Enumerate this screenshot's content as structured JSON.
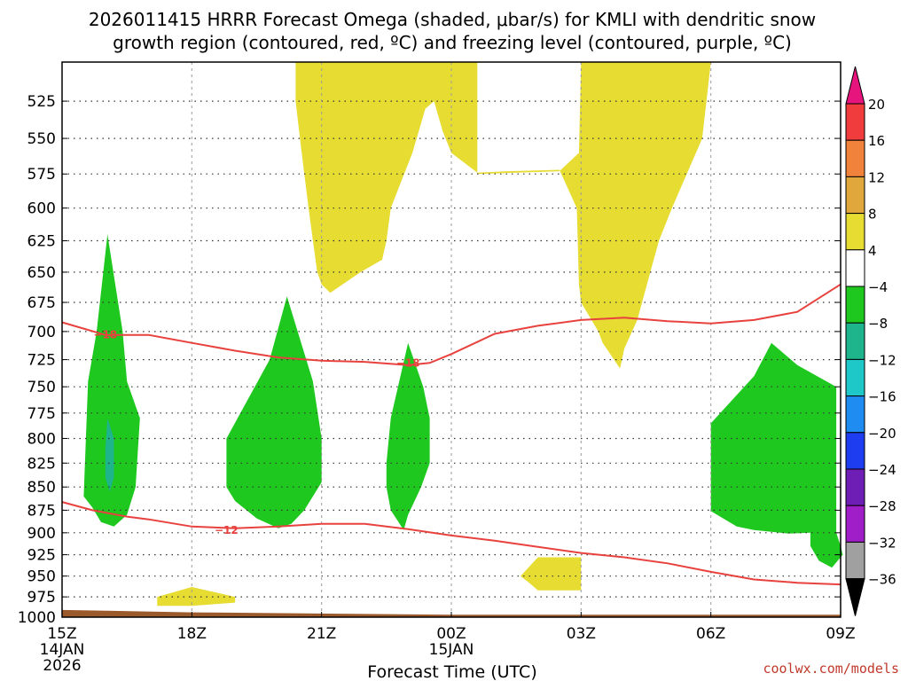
{
  "chart_data": {
    "type": "heatmap",
    "title_line1": "2026011415 HRRR Forecast Omega (shaded, μbar/s) for KMLI with dendritic snow",
    "title_line2": "growth region (contoured, red, ºC) and freezing level (contoured, purple, ºC)",
    "xlabel": "Forecast Time (UTC)",
    "credit": "coolwx.com/models",
    "x_range_hours": [
      0,
      18
    ],
    "pressure_range_mb": [
      500,
      1000
    ],
    "x_ticks": [
      {
        "h": 0,
        "label": "15Z",
        "sub1": "14JAN",
        "sub2": "2026"
      },
      {
        "h": 3,
        "label": "18Z",
        "sub1": "",
        "sub2": ""
      },
      {
        "h": 6,
        "label": "21Z",
        "sub1": "",
        "sub2": ""
      },
      {
        "h": 9,
        "label": "00Z",
        "sub1": "15JAN",
        "sub2": ""
      },
      {
        "h": 12,
        "label": "03Z",
        "sub1": "",
        "sub2": ""
      },
      {
        "h": 15,
        "label": "06Z",
        "sub1": "",
        "sub2": ""
      },
      {
        "h": 18,
        "label": "09Z",
        "sub1": "",
        "sub2": ""
      }
    ],
    "y_ticks": [
      {
        "p": 525,
        "label": "525"
      },
      {
        "p": 550,
        "label": "550"
      },
      {
        "p": 575,
        "label": "575"
      },
      {
        "p": 600,
        "label": "600"
      },
      {
        "p": 625,
        "label": "625"
      },
      {
        "p": 650,
        "label": "650"
      },
      {
        "p": 675,
        "label": "675"
      },
      {
        "p": 700,
        "label": "700"
      },
      {
        "p": 725,
        "label": "725"
      },
      {
        "p": 750,
        "label": "750"
      },
      {
        "p": 775,
        "label": "775"
      },
      {
        "p": 800,
        "label": "800"
      },
      {
        "p": 825,
        "label": "825"
      },
      {
        "p": 850,
        "label": "850"
      },
      {
        "p": 875,
        "label": "875"
      },
      {
        "p": 900,
        "label": "900"
      },
      {
        "p": 925,
        "label": "925"
      },
      {
        "p": 950,
        "label": "950"
      },
      {
        "p": 975,
        "label": "975"
      },
      {
        "p": 1000,
        "label": "1000"
      }
    ],
    "colorbar": {
      "labels": [
        "20",
        "16",
        "12",
        "8",
        "4",
        "−4",
        "−8",
        "−12",
        "−16",
        "−20",
        "−24",
        "−28",
        "−32",
        "−36"
      ],
      "colors": [
        "#f03c3c",
        "#f0823c",
        "#e0a83c",
        "#e6dc32",
        "#ffffff",
        "#1ec81e",
        "#1eb48c",
        "#1ec8c8",
        "#1e8cf0",
        "#1e3cf0",
        "#6e1eb4",
        "#a01ec8",
        "#a0a0a0"
      ],
      "top_color": "#e6147d",
      "bottom_color": "#000000"
    },
    "colors": {
      "positive_omega": "#e6dc32",
      "negative_omega": "#1ec81e",
      "strong_negative": "#1eb48c",
      "contour": "#e8423f",
      "terrain": "#9b5a2c",
      "grid": "#888888"
    },
    "contours": [
      {
        "name": "minus-18-contour",
        "label": "−18",
        "label_h": 1.0,
        "label_p": 703,
        "label2_h": 8.0,
        "label2_p": 728,
        "points": [
          [
            0,
            692
          ],
          [
            1.0,
            703
          ],
          [
            2.0,
            703
          ],
          [
            3.0,
            710
          ],
          [
            4.0,
            717
          ],
          [
            5.0,
            723
          ],
          [
            6.0,
            726
          ],
          [
            7.0,
            727
          ],
          [
            8.0,
            730
          ],
          [
            8.5,
            728
          ],
          [
            9.0,
            720
          ],
          [
            10.0,
            702
          ],
          [
            11.0,
            695
          ],
          [
            12.0,
            690
          ],
          [
            13.0,
            688
          ],
          [
            14.0,
            691
          ],
          [
            15.0,
            693
          ],
          [
            16.0,
            690
          ],
          [
            17.0,
            683
          ],
          [
            18.0,
            660
          ]
        ]
      },
      {
        "name": "minus-12-contour",
        "label": "−12",
        "label_h": 3.8,
        "label_p": 897,
        "points": [
          [
            0,
            866
          ],
          [
            0.7,
            875
          ],
          [
            1.5,
            882
          ],
          [
            2.0,
            885
          ],
          [
            3.0,
            893
          ],
          [
            4.0,
            895
          ],
          [
            5.0,
            893
          ],
          [
            6.0,
            890
          ],
          [
            7.0,
            890
          ],
          [
            8.0,
            896
          ],
          [
            9.0,
            903
          ],
          [
            10.0,
            909
          ],
          [
            11.0,
            916
          ],
          [
            12.0,
            923
          ],
          [
            13.0,
            928
          ],
          [
            14.0,
            935
          ],
          [
            15.0,
            945
          ],
          [
            16.0,
            954
          ],
          [
            17.0,
            958
          ],
          [
            18.0,
            960
          ]
        ]
      }
    ],
    "regions": [
      {
        "name": "upward-motion-region-1",
        "color": "positive_omega",
        "points": [
          [
            5.4,
            500
          ],
          [
            9.6,
            500
          ],
          [
            9.6,
            575
          ],
          [
            11.5,
            573
          ],
          [
            11.95,
            560
          ],
          [
            12.0,
            500
          ],
          [
            15.0,
            500
          ],
          [
            14.8,
            550
          ],
          [
            14.1,
            600
          ],
          [
            13.8,
            625
          ],
          [
            13.6,
            650
          ],
          [
            13.3,
            690
          ],
          [
            13.0,
            715
          ],
          [
            12.9,
            733
          ],
          [
            12.5,
            710
          ],
          [
            12.4,
            700
          ],
          [
            12.0,
            675
          ],
          [
            11.95,
            660
          ],
          [
            11.9,
            600
          ],
          [
            11.5,
            572
          ],
          [
            10.3,
            573
          ],
          [
            9.6,
            574
          ],
          [
            9.0,
            560
          ],
          [
            8.8,
            545
          ],
          [
            8.6,
            525
          ],
          [
            8.4,
            530
          ],
          [
            8.1,
            560
          ],
          [
            7.6,
            600
          ],
          [
            7.5,
            625
          ],
          [
            7.4,
            640
          ],
          [
            6.9,
            650
          ],
          [
            6.2,
            667
          ],
          [
            6.0,
            660
          ],
          [
            5.9,
            650
          ],
          [
            5.8,
            625
          ],
          [
            5.7,
            600
          ],
          [
            5.6,
            575
          ],
          [
            5.5,
            550
          ],
          [
            5.4,
            525
          ]
        ]
      },
      {
        "name": "upward-motion-region-2",
        "color": "positive_omega",
        "points": [
          [
            10.6,
            950
          ],
          [
            11.0,
            928
          ],
          [
            12.0,
            928
          ],
          [
            12.0,
            967
          ],
          [
            11.0,
            967
          ],
          [
            10.8,
            958
          ]
        ]
      },
      {
        "name": "upward-motion-region-3",
        "color": "positive_omega",
        "points": [
          [
            2.2,
            975
          ],
          [
            3.0,
            963
          ],
          [
            4.0,
            975
          ],
          [
            4.0,
            982
          ],
          [
            3.0,
            986
          ],
          [
            2.2,
            986
          ]
        ]
      },
      {
        "name": "downward-motion-region-1",
        "color": "negative_omega",
        "points": [
          [
            0.5,
            860
          ],
          [
            0.6,
            745
          ],
          [
            0.8,
            700
          ],
          [
            1.05,
            620
          ],
          [
            1.4,
            700
          ],
          [
            1.5,
            745
          ],
          [
            1.8,
            780
          ],
          [
            1.7,
            850
          ],
          [
            1.5,
            880
          ],
          [
            1.2,
            893
          ],
          [
            0.9,
            888
          ],
          [
            0.7,
            872
          ]
        ]
      },
      {
        "name": "strong-downward-core",
        "color": "strong_negative",
        "points": [
          [
            1.0,
            810
          ],
          [
            1.05,
            780
          ],
          [
            1.2,
            800
          ],
          [
            1.2,
            840
          ],
          [
            1.1,
            855
          ],
          [
            1.0,
            840
          ]
        ]
      },
      {
        "name": "downward-motion-region-2",
        "color": "negative_omega",
        "points": [
          [
            3.8,
            800
          ],
          [
            4.8,
            725
          ],
          [
            5.2,
            670
          ],
          [
            5.8,
            745
          ],
          [
            6.0,
            800
          ],
          [
            6.0,
            845
          ],
          [
            5.6,
            875
          ],
          [
            5.3,
            890
          ],
          [
            5.0,
            895
          ],
          [
            4.5,
            884
          ],
          [
            4.0,
            865
          ],
          [
            3.8,
            850
          ],
          [
            3.8,
            825
          ]
        ]
      },
      {
        "name": "downward-motion-region-3",
        "color": "negative_omega",
        "points": [
          [
            7.5,
            825
          ],
          [
            7.6,
            780
          ],
          [
            8.0,
            710
          ],
          [
            8.35,
            750
          ],
          [
            8.5,
            780
          ],
          [
            8.5,
            825
          ],
          [
            8.3,
            850
          ],
          [
            8.0,
            880
          ],
          [
            7.9,
            897
          ],
          [
            7.6,
            875
          ],
          [
            7.5,
            850
          ]
        ]
      },
      {
        "name": "downward-motion-region-4",
        "color": "negative_omega",
        "points": [
          [
            15.0,
            785
          ],
          [
            16.0,
            740
          ],
          [
            16.4,
            710
          ],
          [
            17.0,
            730
          ],
          [
            17.9,
            750
          ],
          [
            17.9,
            900
          ],
          [
            18.0,
            915
          ],
          [
            18.05,
            925
          ],
          [
            17.8,
            940
          ],
          [
            17.5,
            932
          ],
          [
            17.3,
            915
          ],
          [
            17.3,
            900
          ],
          [
            16.8,
            901
          ],
          [
            16.0,
            897
          ],
          [
            15.6,
            893
          ],
          [
            15.0,
            876
          ]
        ]
      }
    ]
  }
}
